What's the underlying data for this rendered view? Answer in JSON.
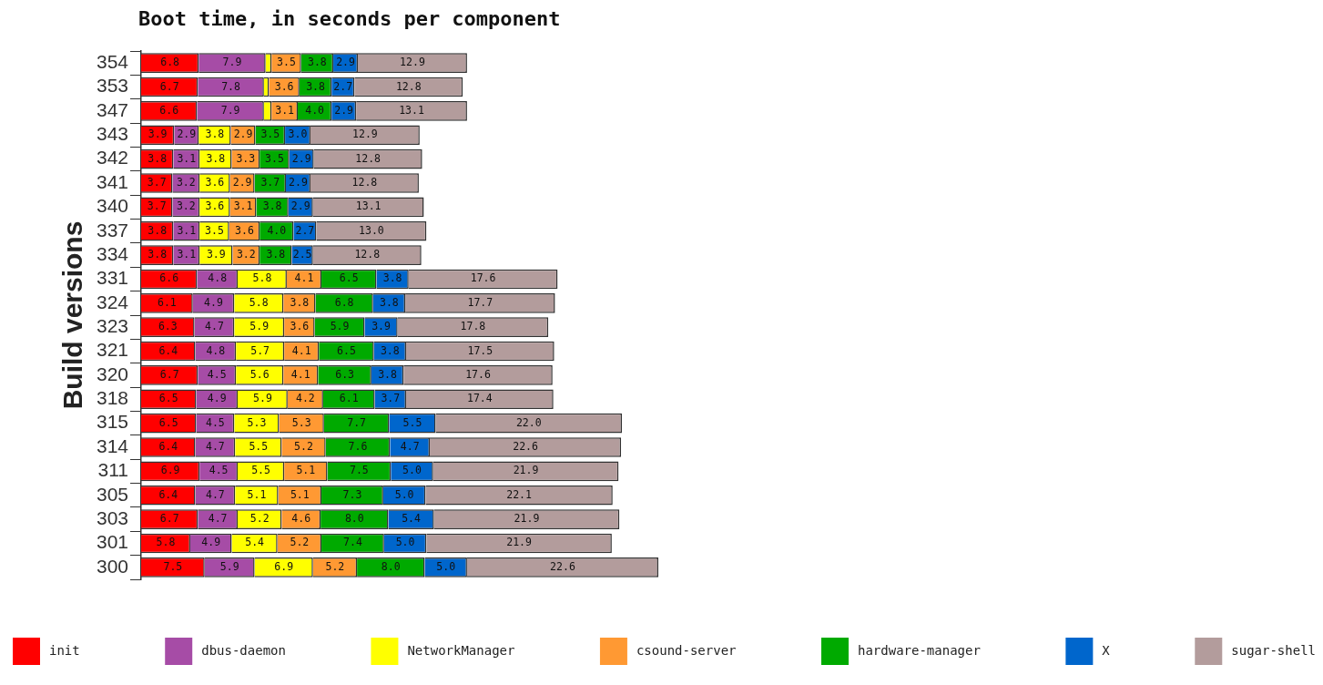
{
  "chart_data": {
    "type": "bar",
    "orientation": "horizontal",
    "stacked": true,
    "title": "Boot time, in seconds per component",
    "ylabel": "Build versions",
    "categories": [
      "354",
      "353",
      "347",
      "343",
      "342",
      "341",
      "340",
      "337",
      "334",
      "331",
      "324",
      "323",
      "321",
      "320",
      "318",
      "315",
      "314",
      "311",
      "305",
      "303",
      "301",
      "300"
    ],
    "series": [
      {
        "name": "init",
        "color": "#ff0000",
        "values": [
          6.8,
          6.7,
          6.6,
          3.9,
          3.8,
          3.7,
          3.7,
          3.8,
          3.8,
          6.6,
          6.1,
          6.3,
          6.4,
          6.7,
          6.5,
          6.5,
          6.4,
          6.9,
          6.4,
          6.7,
          5.8,
          7.5
        ],
        "value_labels": [
          "6.8",
          "6.7",
          "6.6",
          "3.9",
          "3.8",
          "3.7",
          "3.7",
          "3.8",
          "3.8",
          "6.6",
          "6.1",
          "6.3",
          "6.4",
          "6.7",
          "6.5",
          "6.5",
          "6.4",
          "6.9",
          "6.4",
          "6.7",
          "5.8",
          "7.5"
        ]
      },
      {
        "name": "dbus-daemon",
        "color": "#a64ca6",
        "values": [
          7.9,
          7.8,
          7.9,
          2.9,
          3.1,
          3.2,
          3.2,
          3.1,
          3.1,
          4.8,
          4.9,
          4.7,
          4.8,
          4.5,
          4.9,
          4.5,
          4.7,
          4.5,
          4.7,
          4.7,
          4.9,
          5.9
        ],
        "value_labels": [
          "7.9",
          "7.8",
          "7.9",
          "2.9",
          "3.1",
          "3.2",
          "3.2",
          "3.1",
          "3.1",
          "4.8",
          "4.9",
          "4.7",
          "4.8",
          "4.5",
          "4.9",
          "4.5",
          "4.7",
          "4.5",
          "4.7",
          "4.7",
          "4.9",
          "5.9"
        ]
      },
      {
        "name": "NetworkManager",
        "color": "#ffff00",
        "values": [
          0.7,
          0.6,
          0.9,
          3.8,
          3.8,
          3.6,
          3.6,
          3.5,
          3.9,
          5.8,
          5.8,
          5.9,
          5.7,
          5.6,
          5.9,
          5.3,
          5.5,
          5.5,
          5.1,
          5.2,
          5.4,
          6.9
        ],
        "value_labels": [
          null,
          null,
          null,
          "3.8",
          "3.8",
          "3.6",
          "3.6",
          "3.5",
          "3.9",
          "5.8",
          "5.8",
          "5.9",
          "5.7",
          "5.6",
          "5.9",
          "5.3",
          "5.5",
          "5.5",
          "5.1",
          "5.2",
          "5.4",
          "6.9"
        ]
      },
      {
        "name": "csound-server",
        "color": "#ff9933",
        "values": [
          3.5,
          3.6,
          3.1,
          2.9,
          3.3,
          2.9,
          3.1,
          3.6,
          3.2,
          4.1,
          3.8,
          3.6,
          4.1,
          4.1,
          4.2,
          5.3,
          5.2,
          5.1,
          5.1,
          4.6,
          5.2,
          5.2
        ],
        "value_labels": [
          "3.5",
          "3.6",
          "3.1",
          "2.9",
          "3.3",
          "2.9",
          "3.1",
          "3.6",
          "3.2",
          "4.1",
          "3.8",
          "3.6",
          "4.1",
          "4.1",
          "4.2",
          "5.3",
          "5.2",
          "5.1",
          "5.1",
          "4.6",
          "5.2",
          "5.2"
        ]
      },
      {
        "name": "hardware-manager",
        "color": "#00aa00",
        "values": [
          3.8,
          3.8,
          4.0,
          3.5,
          3.5,
          3.7,
          3.8,
          4.0,
          3.8,
          6.5,
          6.8,
          5.9,
          6.5,
          6.3,
          6.1,
          7.7,
          7.6,
          7.5,
          7.3,
          8.0,
          7.4,
          8.0
        ],
        "value_labels": [
          "3.8",
          "3.8",
          "4.0",
          "3.5",
          "3.5",
          "3.7",
          "3.8",
          "4.0",
          "3.8",
          "6.5",
          "6.8",
          "5.9",
          "6.5",
          "6.3",
          "6.1",
          "7.7",
          "7.6",
          "7.5",
          "7.3",
          "8.0",
          "7.4",
          "8.0"
        ]
      },
      {
        "name": "X",
        "color": "#0066cc",
        "values": [
          2.9,
          2.7,
          2.9,
          3.0,
          2.9,
          2.9,
          2.9,
          2.7,
          2.5,
          3.8,
          3.8,
          3.9,
          3.8,
          3.8,
          3.7,
          5.5,
          4.7,
          5.0,
          5.0,
          5.4,
          5.0,
          5.0
        ],
        "value_labels": [
          "2.9",
          "2.7",
          "2.9",
          "3.0",
          "2.9",
          "2.9",
          "2.9",
          "2.7",
          "2.5",
          "3.8",
          "3.8",
          "3.9",
          "3.8",
          "3.8",
          "3.7",
          "5.5",
          "4.7",
          "5.0",
          "5.0",
          "5.4",
          "5.0",
          "5.0"
        ]
      },
      {
        "name": "sugar-shell",
        "color": "#b39c9c",
        "values": [
          12.9,
          12.8,
          13.1,
          12.9,
          12.8,
          12.8,
          13.1,
          13.0,
          12.8,
          17.6,
          17.7,
          17.8,
          17.5,
          17.6,
          17.4,
          22.0,
          22.6,
          21.9,
          22.1,
          21.9,
          21.9,
          22.6
        ],
        "value_labels": [
          "12.9",
          "12.8",
          "13.1",
          "12.9",
          "12.8",
          "12.8",
          "13.1",
          "13.0",
          "12.8",
          "17.6",
          "17.7",
          "17.8",
          "17.5",
          "17.6",
          "17.4",
          "22.0",
          "22.6",
          "21.9",
          "22.1",
          "21.9",
          "21.9",
          "22.6"
        ]
      }
    ],
    "legend": "bottom",
    "grid": false,
    "tick_labels": "y"
  }
}
